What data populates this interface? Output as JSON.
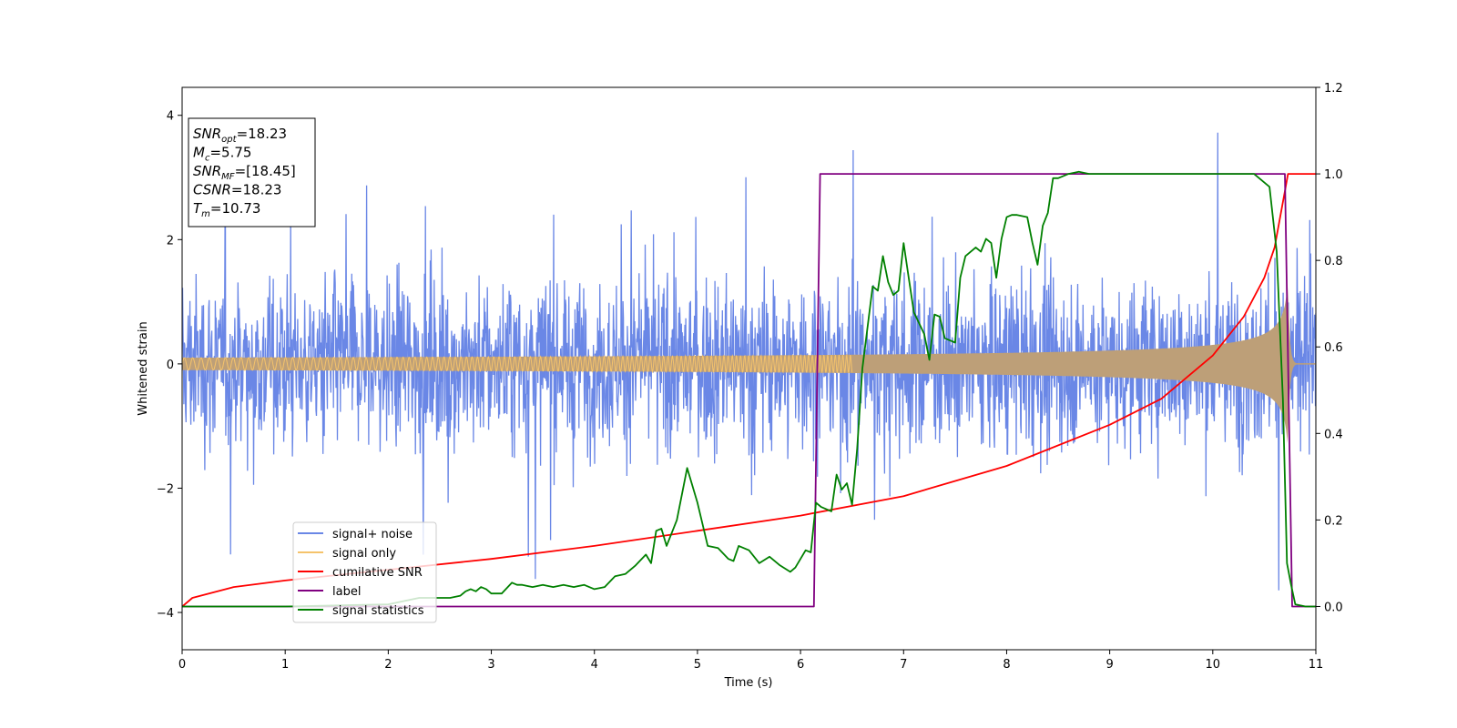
{
  "chart_data": {
    "type": "line",
    "xlabel": "Time (s)",
    "ylabel": "Whitened strain",
    "xlim": [
      0,
      11
    ],
    "ylim": [
      -4.6,
      4.45
    ],
    "y2lim": [
      -0.1,
      1.2
    ],
    "xticks": [
      "0",
      "1",
      "2",
      "3",
      "4",
      "5",
      "6",
      "7",
      "8",
      "9",
      "10",
      "11"
    ],
    "yticks": [
      "−4",
      "−2",
      "0",
      "2",
      "4"
    ],
    "y2ticks": [
      "0.0",
      "0.2",
      "0.4",
      "0.6",
      "0.8",
      "1.0",
      "1.2"
    ],
    "legend_position": "lower-left",
    "colors": {
      "signal_noise": "#6a87e6",
      "signal_only": "#f5c36b",
      "signal_overlap": "#bd9f78",
      "cumulative_snr": "#ff0000",
      "label": "#800080",
      "signal_statistics": "#008000"
    },
    "series": [
      {
        "name": "signal+ noise",
        "axis": "left",
        "kind": "noise",
        "sigma": 0.95,
        "peak_max": 4.0,
        "peak_min": -4.1
      },
      {
        "name": "signal only",
        "axis": "left",
        "kind": "chirp",
        "start_amplitude": 0.1,
        "merger_time": 10.73,
        "peak_amplitude": 1.3
      },
      {
        "name": "cumilative SNR",
        "axis": "right",
        "x": [
          0,
          0.1,
          0.5,
          1,
          2,
          3,
          4,
          5,
          6,
          7,
          8,
          9,
          9.5,
          10,
          10.3,
          10.5,
          10.6,
          10.7,
          10.73,
          11
        ],
        "y": [
          0,
          0.02,
          0.045,
          0.06,
          0.085,
          0.11,
          0.14,
          0.175,
          0.21,
          0.255,
          0.325,
          0.42,
          0.48,
          0.58,
          0.67,
          0.76,
          0.83,
          0.96,
          1.0,
          1.0
        ]
      },
      {
        "name": "label",
        "axis": "right",
        "x": [
          0,
          6.13,
          6.19,
          10.7,
          10.77,
          11
        ],
        "y": [
          0,
          0,
          1,
          1,
          0,
          0
        ]
      },
      {
        "name": "signal statistics",
        "axis": "right",
        "x": [
          0,
          1,
          2,
          2.3,
          2.5,
          2.6,
          2.7,
          2.75,
          2.8,
          2.85,
          2.9,
          2.95,
          3.0,
          3.1,
          3.2,
          3.25,
          3.3,
          3.4,
          3.5,
          3.6,
          3.7,
          3.8,
          3.9,
          4.0,
          4.1,
          4.2,
          4.3,
          4.4,
          4.5,
          4.55,
          4.6,
          4.65,
          4.7,
          4.8,
          4.9,
          5.0,
          5.1,
          5.2,
          5.3,
          5.35,
          5.4,
          5.5,
          5.6,
          5.7,
          5.8,
          5.9,
          5.95,
          6.05,
          6.1,
          6.15,
          6.2,
          6.3,
          6.35,
          6.4,
          6.45,
          6.5,
          6.55,
          6.6,
          6.7,
          6.75,
          6.8,
          6.85,
          6.9,
          6.95,
          7.0,
          7.05,
          7.1,
          7.2,
          7.25,
          7.3,
          7.35,
          7.4,
          7.45,
          7.5,
          7.55,
          7.6,
          7.7,
          7.75,
          7.8,
          7.85,
          7.9,
          7.95,
          8.0,
          8.05,
          8.1,
          8.2,
          8.25,
          8.3,
          8.35,
          8.4,
          8.45,
          8.5,
          8.6,
          8.7,
          8.8,
          9.0,
          9.2,
          9.4,
          9.6,
          9.8,
          10.0,
          10.2,
          10.4,
          10.55,
          10.62,
          10.68,
          10.72,
          10.76,
          10.8,
          10.9,
          11.0
        ],
        "y": [
          0.0,
          0.0,
          0.005,
          0.02,
          0.02,
          0.02,
          0.025,
          0.035,
          0.04,
          0.035,
          0.045,
          0.04,
          0.03,
          0.03,
          0.055,
          0.05,
          0.05,
          0.045,
          0.05,
          0.045,
          0.05,
          0.045,
          0.05,
          0.04,
          0.045,
          0.07,
          0.075,
          0.095,
          0.12,
          0.1,
          0.175,
          0.18,
          0.14,
          0.2,
          0.32,
          0.24,
          0.14,
          0.135,
          0.11,
          0.105,
          0.14,
          0.13,
          0.1,
          0.115,
          0.095,
          0.08,
          0.09,
          0.13,
          0.125,
          0.24,
          0.23,
          0.22,
          0.305,
          0.27,
          0.285,
          0.235,
          0.365,
          0.55,
          0.74,
          0.73,
          0.81,
          0.75,
          0.72,
          0.73,
          0.84,
          0.76,
          0.68,
          0.63,
          0.57,
          0.675,
          0.67,
          0.62,
          0.615,
          0.61,
          0.76,
          0.81,
          0.83,
          0.82,
          0.85,
          0.84,
          0.76,
          0.85,
          0.9,
          0.905,
          0.905,
          0.9,
          0.84,
          0.79,
          0.88,
          0.91,
          0.99,
          0.99,
          1.0,
          1.005,
          1.0,
          1.0,
          1.0,
          1.0,
          1.0,
          1.0,
          1.0,
          1.0,
          1.0,
          0.97,
          0.82,
          0.48,
          0.1,
          0.05,
          0.005,
          0.0,
          0.0
        ]
      }
    ],
    "info_box": [
      {
        "base": "SNR",
        "sub": "opt",
        "value": "=18.23"
      },
      {
        "base": "M",
        "sub": "c",
        "value": "=5.75"
      },
      {
        "base": "SNR",
        "sub": "MF",
        "value": "=[18.45]"
      },
      {
        "base": "CSNR",
        "sub": "",
        "value": "=18.23"
      },
      {
        "base": "T",
        "sub": "m",
        "value": "=10.73"
      }
    ]
  },
  "legend": [
    "signal+ noise",
    "signal only",
    "cumilative SNR",
    "label",
    "signal statistics"
  ]
}
